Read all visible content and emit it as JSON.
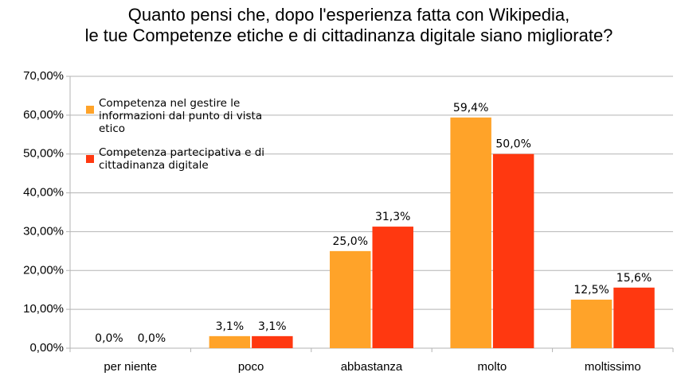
{
  "chart_data": {
    "type": "bar",
    "title": [
      "Quanto pensi che, dopo l'esperienza fatta con Wikipedia,",
      "le tue Competenze etiche e di cittadinanza digitale siano migliorate?"
    ],
    "categories": [
      "per niente",
      "poco",
      "abbastanza",
      "molto",
      "moltissimo"
    ],
    "series": [
      {
        "name": "Competenza nel gestire le informazioni dal punto di vista etico",
        "color": "#ffa329",
        "values": [
          0,
          3.1,
          25,
          59.4,
          12.5
        ],
        "value_labels": [
          "0,0%",
          "3,1%",
          "25,0%",
          "59,4%",
          "12,5%"
        ]
      },
      {
        "name": "Competenza partecipativa e di cittadinanza digitale",
        "color": "#ff3810",
        "values": [
          0,
          3.1,
          31.3,
          50,
          15.6
        ],
        "value_labels": [
          "0,0%",
          "3,1%",
          "31,3%",
          "50,0%",
          "15,6%"
        ]
      }
    ],
    "ylim": [
      0,
      70
    ],
    "yticks": [
      {
        "value": 0,
        "label": "0,00%"
      },
      {
        "value": 10,
        "label": "10,00%"
      },
      {
        "value": 20,
        "label": "20,00%"
      },
      {
        "value": 30,
        "label": "30,00%"
      },
      {
        "value": 40,
        "label": "40,00%"
      },
      {
        "value": 50,
        "label": "50,00%"
      },
      {
        "value": 60,
        "label": "60,00%"
      },
      {
        "value": 70,
        "label": "70,00%"
      }
    ],
    "grid": true,
    "legend": "upper-left"
  }
}
